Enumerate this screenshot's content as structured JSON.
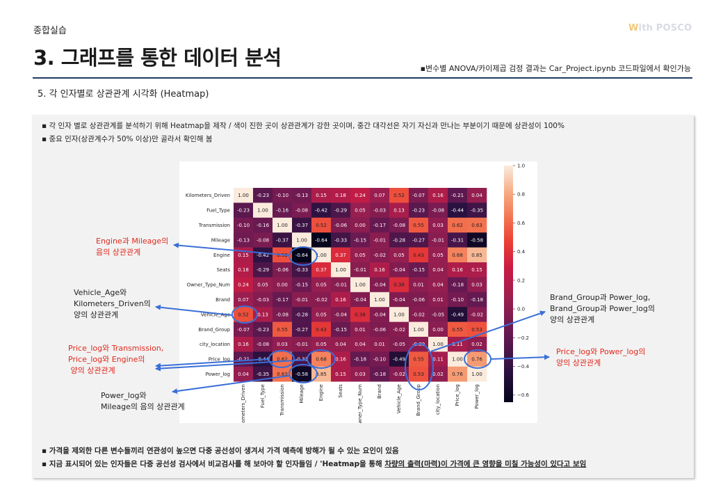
{
  "header": {
    "section_label": "종합실습",
    "logo_text": "ith POSCO",
    "title": "3. 그래프를 통한 데이터 분석",
    "note": "변수별 ANOVA/카이제곱 검정 결과는 Car_Project.ipynb 코드파일에서 확인가능"
  },
  "subheading": "5. 각 인자별로 상관관계 시각화 (Heatmap)",
  "bullets_top": [
    "각 인자 별로 상관관계를 분석하기 위해 Heatmap을 제작 / 색이 진한 곳이 상관관계가 강한 곳이며, 중간 대각선은 자기 자신과 만나는 부분이기 때문에 상관성이 100%",
    "중요 인자(상관계수가  50% 이상)만 골라서 확인해 봄"
  ],
  "bullets_bottom": {
    "line1": "가격을 제외한 다른 변수들끼리 연관성이 높으면 다중 공선성이 생겨서 가격 예측에 방해가 될 수 있는 요인이 있음",
    "line2_prefix": "지금 표시되어 있는 인자들은 다중 공선성 검사에서 비교검사를  해 보아야 할 인자들임 /  'Heatmap을 통해 ",
    "line2_underlined": "차량의 출력(마력)이 가격에 큰 영향을 미칠 가능성이 있다고 보임"
  },
  "annotations": {
    "engine_mileage": [
      "Engine과 Mileage의",
      "음의 상관관계"
    ],
    "vehicle_age": [
      "Vehicle_Age와",
      "Kilometers_Driven의",
      "양의 상관관계"
    ],
    "price_transmission": [
      "Price_log와 Transmission,",
      "Price_log와 Engine의",
      " 양의 상관관계"
    ],
    "power_mileage": [
      "Power_log와",
      "Mileage의 음의 상관관계"
    ],
    "brand_group": [
      "Brand_Group과 Power_log,",
      "Brand_Group과 Power_log의",
      "양의 상관관계"
    ],
    "price_power": [
      "Price_log와 Power_log의",
      "양의 상관관계"
    ]
  },
  "colors": {
    "accent_red": "#e0281c",
    "title_rule": "#1f3b64",
    "highlight_blue": "#3a6fd8"
  },
  "chart_data": {
    "type": "heatmap",
    "labels": [
      "Kilometers_Driven",
      "Fuel_Type",
      "Transmission",
      "Mileage",
      "Engine",
      "Seats",
      "Owner_Type_Num",
      "Brand",
      "Vehicle_Age",
      "Brand_Group",
      "city_location",
      "Price_log",
      "Power_log"
    ],
    "matrix": [
      [
        1.0,
        -0.23,
        -0.1,
        -0.13,
        0.15,
        0.18,
        0.24,
        0.07,
        0.52,
        -0.07,
        0.16,
        -0.21,
        0.04
      ],
      [
        -0.23,
        1.0,
        -0.16,
        -0.08,
        -0.42,
        -0.29,
        0.05,
        -0.03,
        0.13,
        -0.23,
        -0.08,
        -0.44,
        -0.35
      ],
      [
        -0.1,
        -0.16,
        1.0,
        -0.37,
        0.52,
        -0.06,
        0.0,
        -0.17,
        -0.08,
        0.55,
        0.03,
        0.62,
        0.63
      ],
      [
        -0.13,
        -0.08,
        -0.37,
        1.0,
        -0.64,
        -0.33,
        -0.15,
        -0.01,
        -0.28,
        -0.27,
        -0.01,
        -0.31,
        -0.58
      ],
      [
        0.15,
        -0.42,
        0.52,
        -0.64,
        1.0,
        0.37,
        0.05,
        -0.02,
        0.05,
        0.43,
        0.05,
        0.68,
        0.85
      ],
      [
        0.18,
        -0.29,
        -0.06,
        -0.33,
        0.37,
        1.0,
        -0.01,
        0.16,
        -0.04,
        -0.15,
        0.04,
        0.16,
        0.15
      ],
      [
        0.24,
        0.05,
        0.0,
        -0.15,
        0.05,
        -0.01,
        1.0,
        -0.04,
        0.38,
        0.01,
        0.04,
        -0.18,
        0.03
      ],
      [
        0.07,
        -0.03,
        -0.17,
        -0.01,
        -0.02,
        0.16,
        -0.04,
        1.0,
        -0.04,
        -0.06,
        0.01,
        -0.1,
        -0.18
      ],
      [
        0.52,
        0.13,
        -0.08,
        -0.28,
        0.05,
        -0.04,
        0.38,
        -0.04,
        1.0,
        -0.02,
        -0.05,
        -0.49,
        -0.02
      ],
      [
        -0.07,
        -0.23,
        0.55,
        -0.27,
        0.43,
        -0.15,
        0.01,
        -0.06,
        -0.02,
        1.0,
        0.0,
        0.55,
        0.53
      ],
      [
        0.16,
        -0.08,
        0.03,
        -0.01,
        0.05,
        0.04,
        0.04,
        0.01,
        -0.05,
        -0.0,
        1.0,
        0.11,
        0.02
      ],
      [
        -0.21,
        -0.44,
        0.62,
        -0.31,
        0.68,
        0.16,
        -0.18,
        -0.1,
        -0.49,
        0.55,
        0.11,
        1.0,
        0.76
      ],
      [
        0.04,
        -0.35,
        0.63,
        -0.58,
        0.85,
        0.15,
        0.03,
        -0.18,
        -0.02,
        0.53,
        0.02,
        0.76,
        1.0
      ]
    ],
    "colorbar_ticks": [
      "1.0",
      "0.8",
      "0.6",
      "0.4",
      "0.2",
      "0.0",
      "-0.2",
      "-0.4",
      "-0.6"
    ],
    "value_range": [
      -0.65,
      1.0
    ],
    "highlighted_cells": [
      [
        3,
        4
      ],
      [
        8,
        0
      ],
      [
        11,
        2
      ],
      [
        11,
        4
      ],
      [
        12,
        3
      ],
      [
        11,
        9
      ],
      [
        12,
        9
      ],
      [
        11,
        12
      ]
    ]
  }
}
